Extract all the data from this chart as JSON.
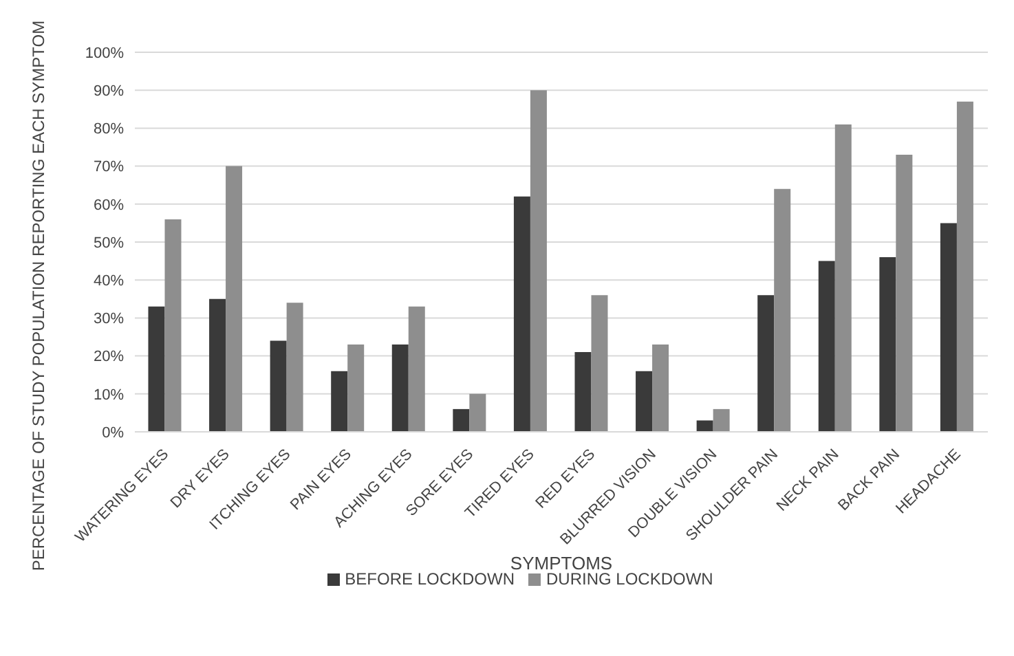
{
  "chart_data": {
    "type": "bar",
    "xlabel": "SYMPTOMS",
    "ylabel": "PERCENTAGE OF STUDY POPULATION REPORTING EACH SYMPTOM",
    "categories": [
      "WATERING EYES",
      "DRY EYES",
      "ITCHING EYES",
      "PAIN EYES",
      "ACHING EYES",
      "SORE EYES",
      "TIRED EYES",
      "RED EYES",
      "BLURRED VISION",
      "DOUBLE VISION",
      "SHOULDER PAIN",
      "NECK PAIN",
      "BACK PAIN",
      "HEADACHE"
    ],
    "series": [
      {
        "name": "BEFORE LOCKDOWN",
        "color": "#3a3a3a",
        "values": [
          33,
          35,
          24,
          16,
          23,
          6,
          62,
          21,
          16,
          3,
          36,
          45,
          46,
          55
        ]
      },
      {
        "name": "DURING LOCKDOWN",
        "color": "#8e8e8e",
        "values": [
          56,
          70,
          34,
          23,
          33,
          10,
          90,
          36,
          23,
          6,
          64,
          81,
          73,
          87
        ]
      }
    ],
    "ylim": [
      0,
      100
    ],
    "yticks": [
      {
        "value": 0,
        "label": "0%"
      },
      {
        "value": 10,
        "label": "10%"
      },
      {
        "value": 20,
        "label": "20%"
      },
      {
        "value": 30,
        "label": "30%"
      },
      {
        "value": 40,
        "label": "40%"
      },
      {
        "value": 50,
        "label": "50%"
      },
      {
        "value": 60,
        "label": "60%"
      },
      {
        "value": 70,
        "label": "70%"
      },
      {
        "value": 80,
        "label": "80%"
      },
      {
        "value": 90,
        "label": "90%"
      },
      {
        "value": 100,
        "label": "100%"
      }
    ],
    "grid": "y",
    "legend": "bottom"
  }
}
